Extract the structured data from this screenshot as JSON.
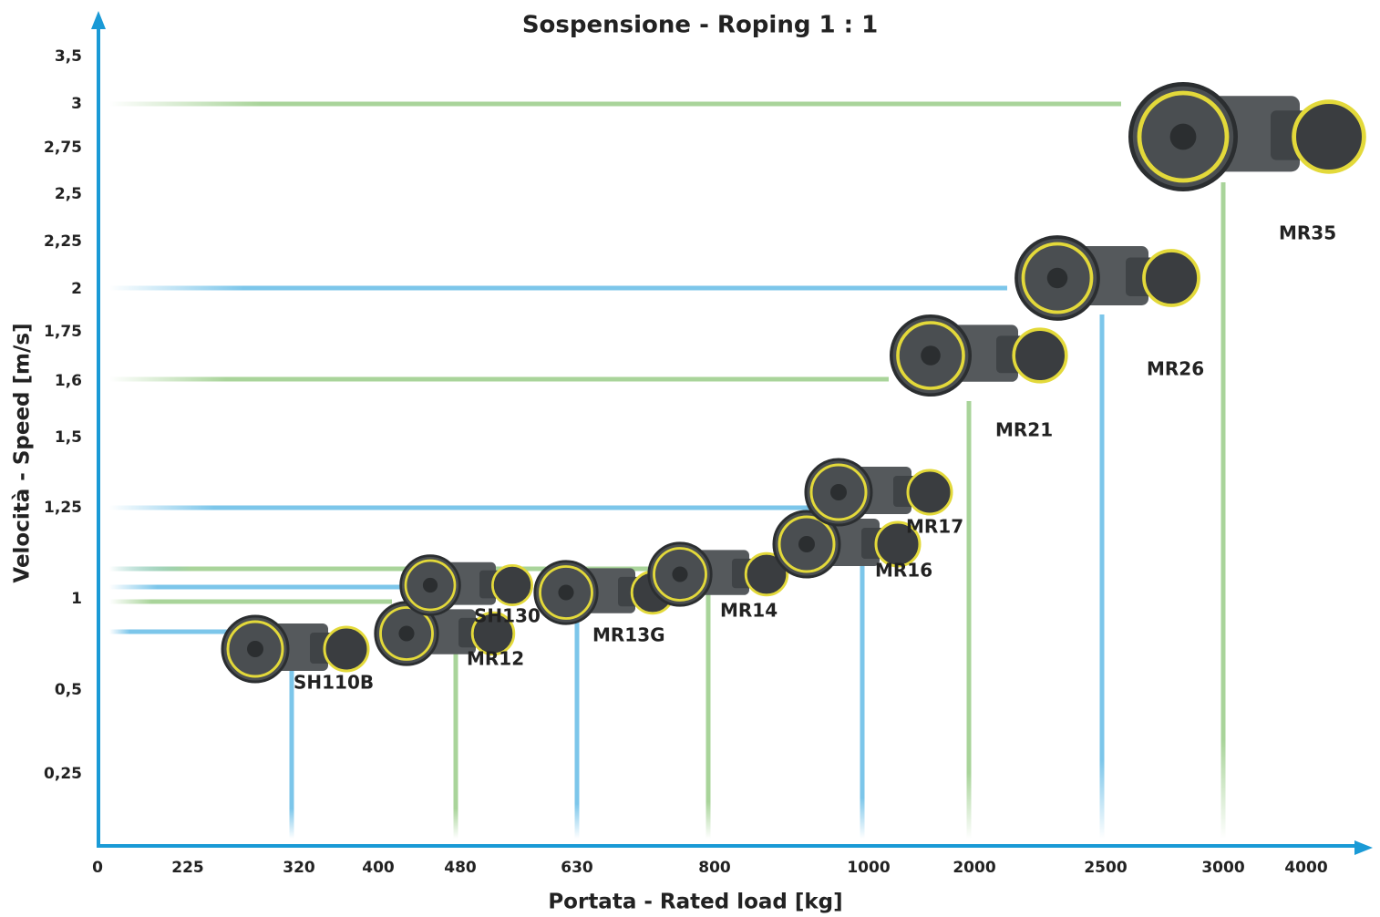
{
  "title": "Sospensione - Roping 1 : 1",
  "x_axis": {
    "label": "Portata - Rated load [kg]",
    "ticks": [
      "0",
      "225",
      "320",
      "400",
      "480",
      "630",
      "800",
      "1000",
      "2000",
      "2500",
      "3000",
      "4000"
    ]
  },
  "y_axis": {
    "label": "Velocità - Speed [m/s]",
    "ticks": [
      "3,5",
      "3",
      "2,75",
      "2,5",
      "2,25",
      "2",
      "1,75",
      "1,6",
      "1,5",
      "1,25",
      "1",
      "0,5",
      "0,25"
    ]
  },
  "models": [
    "SH110B",
    "MR12",
    "SH130",
    "MR13G",
    "MR14",
    "MR16",
    "MR17",
    "MR21",
    "MR26",
    "MR35"
  ]
}
